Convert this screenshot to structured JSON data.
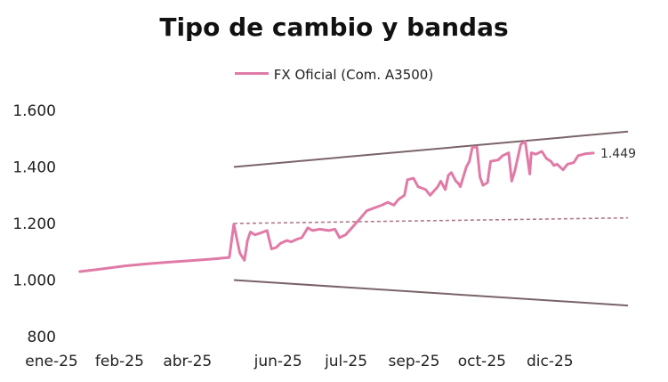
{
  "chart_data": {
    "type": "line",
    "title": "Tipo de cambio y bandas",
    "legend": {
      "placement": "top-center",
      "entries": [
        "FX Oficial (Com. A3500)"
      ]
    },
    "ylim": [
      800,
      1600
    ],
    "y_ticks": [
      "800",
      "1.000",
      "1.200",
      "1.400",
      "1.600"
    ],
    "y_tick_values": [
      800,
      1000,
      1200,
      1400,
      1600
    ],
    "x_ticks": [
      "ene-25",
      "feb-25",
      "abr-25",
      "jun-25",
      "jul-25",
      "sep-25",
      "oct-25",
      "dic-25"
    ],
    "x_tick_dates": [
      "2025-01-01",
      "2025-02-15",
      "2025-04-01",
      "2025-05-31",
      "2025-07-15",
      "2025-08-29",
      "2025-10-13",
      "2025-11-27"
    ],
    "xlim": [
      "2025-01-01",
      "2025-12-31"
    ],
    "grid": false,
    "end_label": "1.449",
    "colors": {
      "fx": "#e07aa6",
      "bands": "#7a6468",
      "mid": "#b07a88"
    },
    "series": [
      {
        "name": "FX Oficial (Com. A3500)",
        "points": [
          [
            "2025-01-02",
            1030
          ],
          [
            "2025-01-15",
            1038
          ],
          [
            "2025-02-01",
            1050
          ],
          [
            "2025-02-15",
            1057
          ],
          [
            "2025-03-01",
            1063
          ],
          [
            "2025-03-15",
            1068
          ],
          [
            "2025-04-01",
            1075
          ],
          [
            "2025-04-11",
            1080
          ],
          [
            "2025-04-14",
            1198
          ],
          [
            "2025-04-16",
            1145
          ],
          [
            "2025-04-18",
            1095
          ],
          [
            "2025-04-21",
            1070
          ],
          [
            "2025-04-23",
            1140
          ],
          [
            "2025-04-25",
            1170
          ],
          [
            "2025-04-28",
            1160
          ],
          [
            "2025-05-01",
            1165
          ],
          [
            "2025-05-06",
            1175
          ],
          [
            "2025-05-09",
            1110
          ],
          [
            "2025-05-12",
            1115
          ],
          [
            "2025-05-15",
            1130
          ],
          [
            "2025-05-19",
            1140
          ],
          [
            "2025-05-22",
            1135
          ],
          [
            "2025-05-26",
            1145
          ],
          [
            "2025-05-29",
            1150
          ],
          [
            "2025-06-02",
            1185
          ],
          [
            "2025-06-05",
            1175
          ],
          [
            "2025-06-10",
            1180
          ],
          [
            "2025-06-16",
            1175
          ],
          [
            "2025-06-20",
            1180
          ],
          [
            "2025-06-23",
            1150
          ],
          [
            "2025-06-27",
            1160
          ],
          [
            "2025-07-02",
            1190
          ],
          [
            "2025-07-07",
            1220
          ],
          [
            "2025-07-11",
            1245
          ],
          [
            "2025-07-16",
            1255
          ],
          [
            "2025-07-21",
            1265
          ],
          [
            "2025-07-25",
            1275
          ],
          [
            "2025-07-29",
            1265
          ],
          [
            "2025-08-01",
            1285
          ],
          [
            "2025-08-05",
            1300
          ],
          [
            "2025-08-07",
            1355
          ],
          [
            "2025-08-11",
            1360
          ],
          [
            "2025-08-14",
            1330
          ],
          [
            "2025-08-19",
            1320
          ],
          [
            "2025-08-22",
            1300
          ],
          [
            "2025-08-27",
            1330
          ],
          [
            "2025-08-29",
            1350
          ],
          [
            "2025-09-01",
            1320
          ],
          [
            "2025-09-03",
            1370
          ],
          [
            "2025-09-05",
            1380
          ],
          [
            "2025-09-08",
            1350
          ],
          [
            "2025-09-10",
            1340
          ],
          [
            "2025-09-11",
            1330
          ],
          [
            "2025-09-15",
            1400
          ],
          [
            "2025-09-17",
            1420
          ],
          [
            "2025-09-19",
            1470
          ],
          [
            "2025-09-22",
            1470
          ],
          [
            "2025-09-24",
            1365
          ],
          [
            "2025-09-26",
            1335
          ],
          [
            "2025-09-29",
            1345
          ],
          [
            "2025-10-01",
            1420
          ],
          [
            "2025-10-06",
            1425
          ],
          [
            "2025-10-09",
            1440
          ],
          [
            "2025-10-13",
            1450
          ],
          [
            "2025-10-15",
            1350
          ],
          [
            "2025-10-17",
            1385
          ],
          [
            "2025-10-21",
            1480
          ],
          [
            "2025-10-24",
            1490
          ],
          [
            "2025-10-27",
            1375
          ],
          [
            "2025-10-28",
            1450
          ],
          [
            "2025-10-31",
            1445
          ],
          [
            "2025-11-04",
            1455
          ],
          [
            "2025-11-07",
            1430
          ],
          [
            "2025-11-10",
            1420
          ],
          [
            "2025-11-12",
            1405
          ],
          [
            "2025-11-14",
            1410
          ],
          [
            "2025-11-18",
            1390
          ],
          [
            "2025-11-21",
            1410
          ],
          [
            "2025-11-25",
            1415
          ],
          [
            "2025-11-28",
            1440
          ],
          [
            "2025-12-03",
            1447
          ],
          [
            "2025-12-08",
            1449
          ]
        ]
      },
      {
        "points": [
          [
            "2025-04-14",
            1400
          ],
          [
            "2025-12-31",
            1525
          ]
        ]
      },
      {
        "points": [
          [
            "2025-04-14",
            1000
          ],
          [
            "2025-12-31",
            910
          ]
        ]
      },
      {
        "points": [
          [
            "2025-04-14",
            1200
          ],
          [
            "2025-12-31",
            1220
          ]
        ]
      }
    ]
  }
}
